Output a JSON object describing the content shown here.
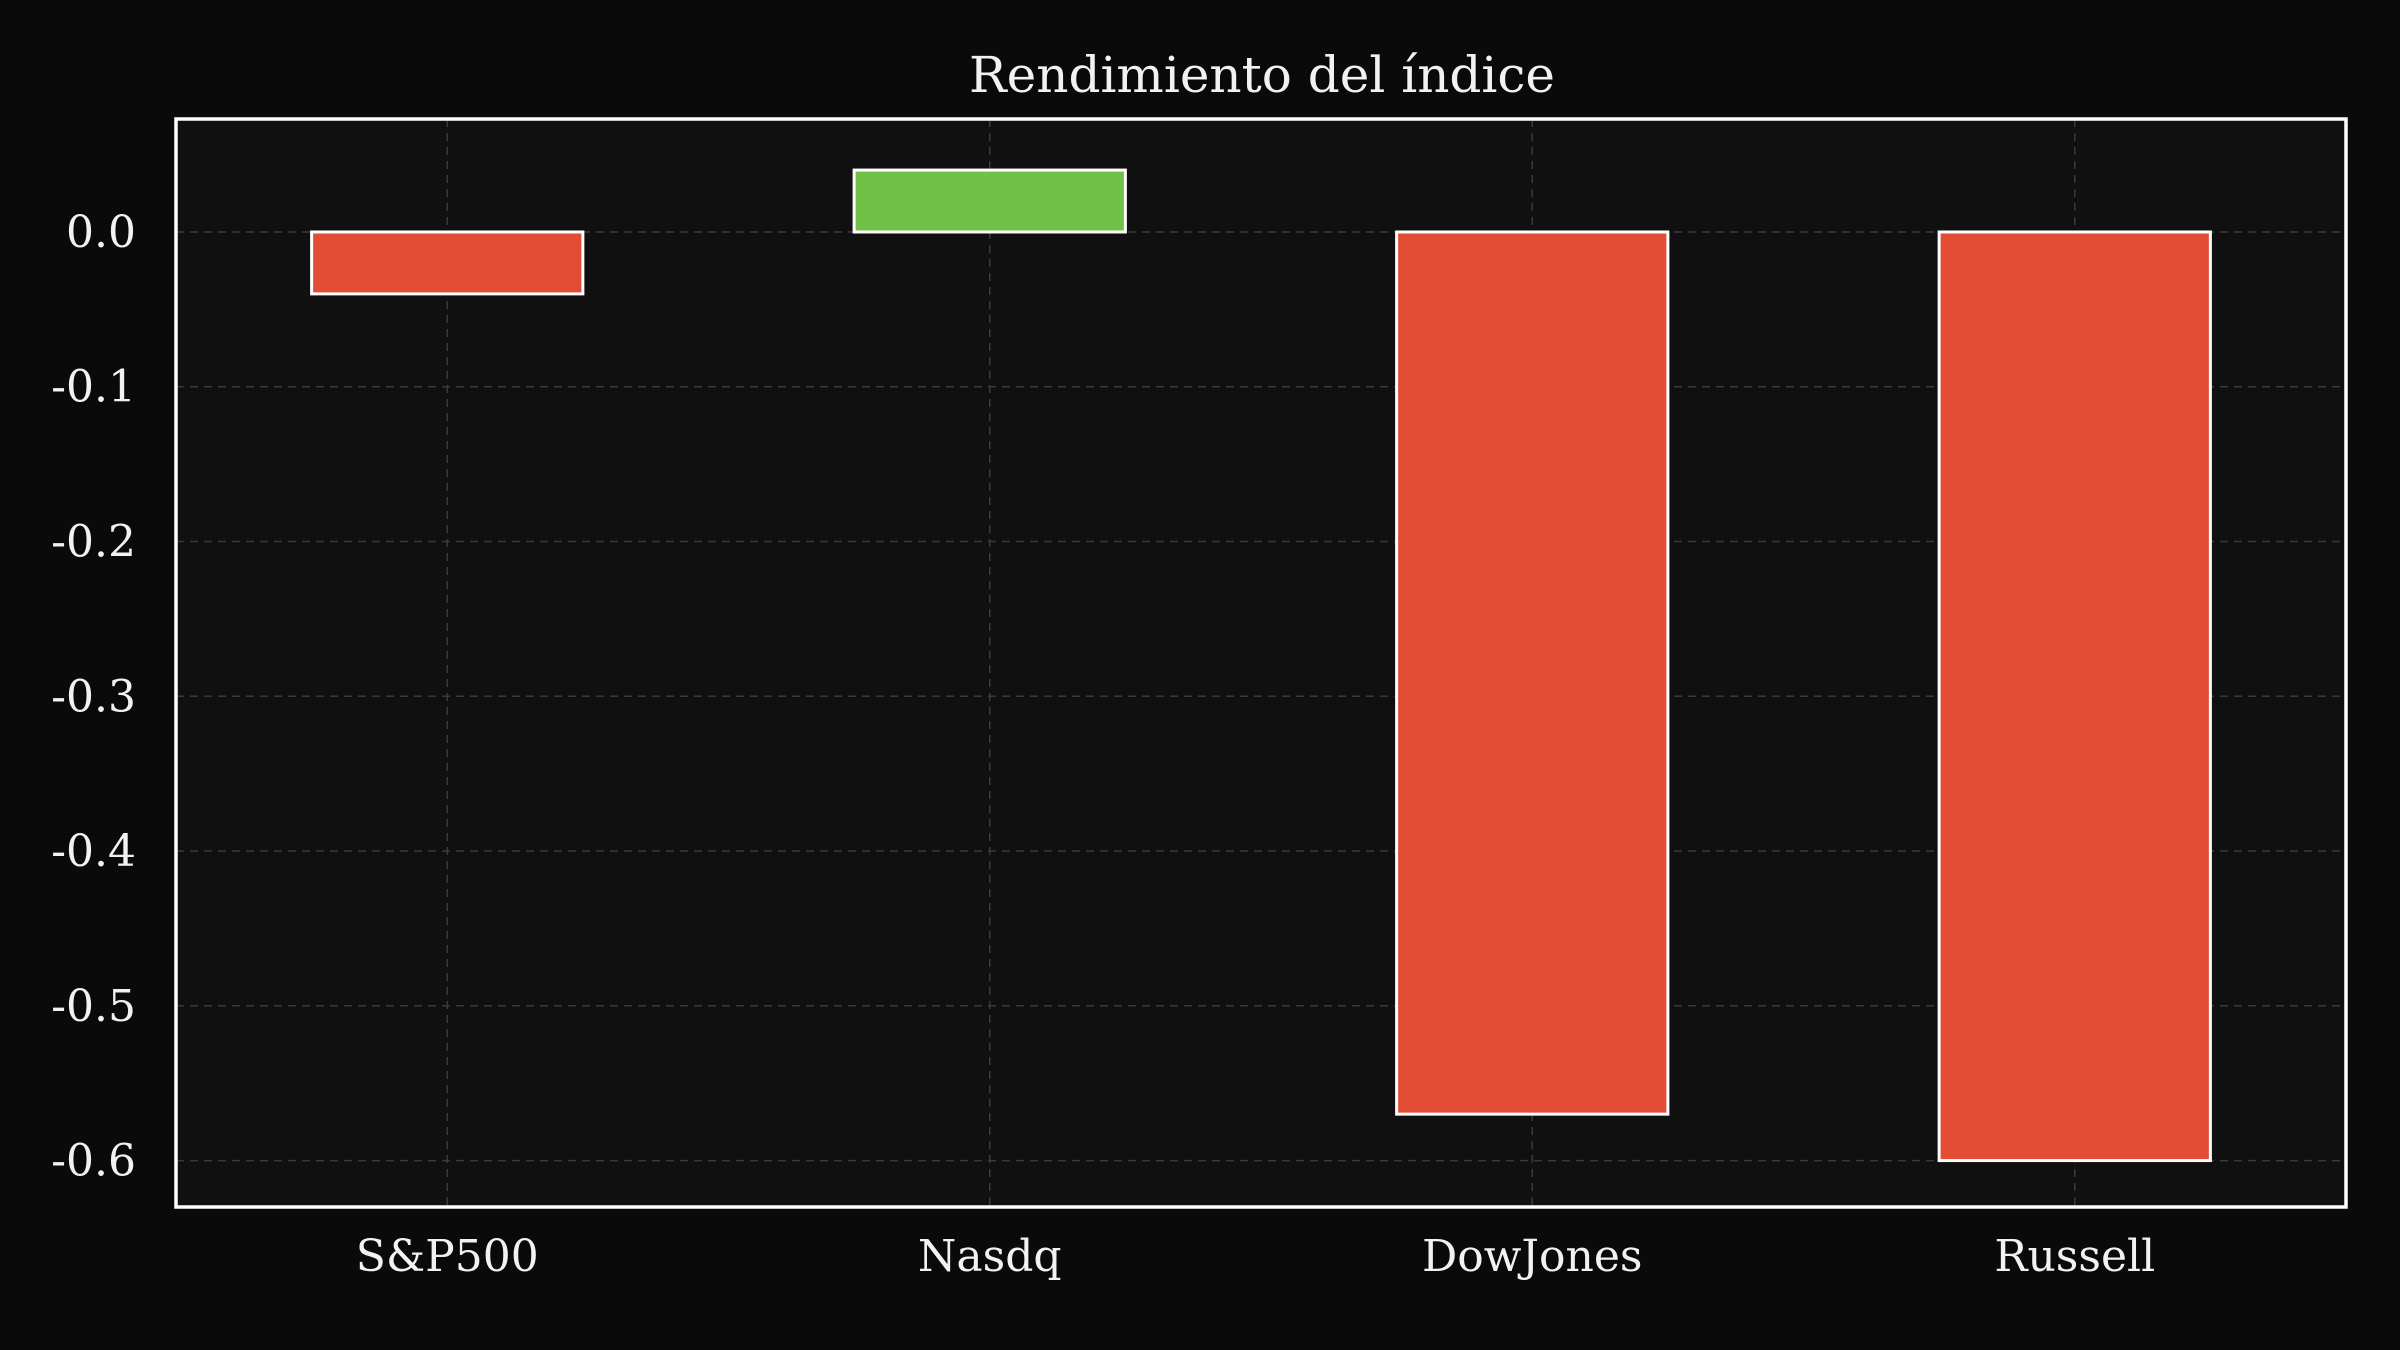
{
  "chart_data": {
    "type": "bar",
    "title": "Rendimiento del índice",
    "xlabel": "",
    "ylabel": "",
    "categories": [
      "S&P500",
      "Nasdq",
      "DowJones",
      "Russell"
    ],
    "values": [
      -0.04,
      0.04,
      -0.57,
      -0.6
    ],
    "bar_colors": [
      "#e34d36",
      "#71c047",
      "#e34d36",
      "#e34d36"
    ],
    "ylim": [
      -0.63,
      0.073
    ],
    "yticks": [
      0.0,
      -0.1,
      -0.2,
      -0.3,
      -0.4,
      -0.5,
      -0.6
    ],
    "ytick_labels": [
      "0.0",
      "-0.1",
      "-0.2",
      "-0.3",
      "-0.4",
      "-0.5",
      "-0.6"
    ],
    "grid": true,
    "legend": "none"
  },
  "colors": {
    "page_background": "#0a0a0a",
    "plot_background": "#101010",
    "frame": "#ffffff",
    "grid": "#3a3a3a",
    "text": "#f2f2f2",
    "negative": "#e34d36",
    "positive": "#71c047",
    "bar_edge": "#ffffff"
  }
}
